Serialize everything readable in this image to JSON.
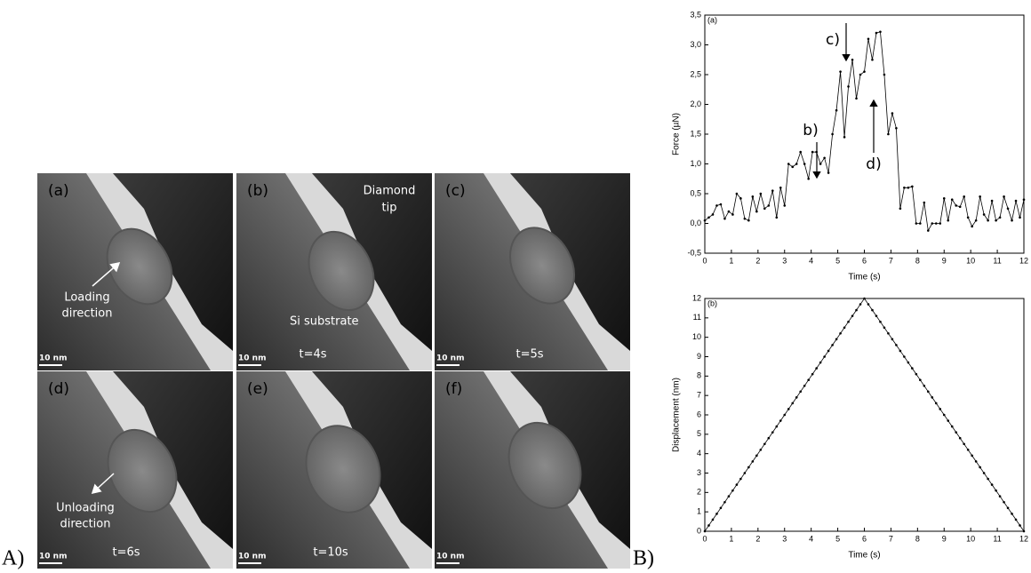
{
  "figure": {
    "panel_a_label": "A)",
    "panel_b_label": "B)",
    "images": [
      {
        "label": "(a)",
        "scale_bar": "10 nm",
        "texts": [
          "Loading",
          "direction"
        ]
      },
      {
        "label": "(b)",
        "scale_bar": "10 nm",
        "texts": [
          "Diamond",
          "tip",
          "Si substrate",
          "t=4s"
        ]
      },
      {
        "label": "(c)",
        "scale_bar": "10 nm",
        "texts": [
          "t=5s"
        ]
      },
      {
        "label": "(d)",
        "scale_bar": "10 nm",
        "texts": [
          "Unloading",
          "direction",
          "t=6s"
        ]
      },
      {
        "label": "(e)",
        "scale_bar": "10 nm",
        "texts": [
          "t=10s"
        ]
      },
      {
        "label": "(f)",
        "scale_bar": "10 nm",
        "texts": []
      }
    ]
  },
  "chart_data": [
    {
      "type": "line",
      "panel_label": "(a)",
      "x_label": "Time (s)",
      "y_label": "Force (µN)",
      "color": "#000000",
      "annotations": [
        "b)",
        "c)",
        "d)"
      ],
      "x": [
        0,
        0.15,
        0.3,
        0.45,
        0.6,
        0.75,
        0.9,
        1.05,
        1.2,
        1.35,
        1.5,
        1.65,
        1.8,
        1.95,
        2.1,
        2.25,
        2.4,
        2.55,
        2.7,
        2.85,
        3,
        3.15,
        3.3,
        3.45,
        3.6,
        3.75,
        3.9,
        4.05,
        4.2,
        4.35,
        4.5,
        4.65,
        4.8,
        4.95,
        5.1,
        5.25,
        5.4,
        5.55,
        5.7,
        5.85,
        6,
        6.15,
        6.3,
        6.45,
        6.6,
        6.75,
        6.9,
        7.05,
        7.2,
        7.35,
        7.5,
        7.65,
        7.8,
        7.95,
        8.1,
        8.25,
        8.4,
        8.55,
        8.7,
        8.85,
        9,
        9.15,
        9.3,
        9.45,
        9.6,
        9.75,
        9.9,
        10.05,
        10.2,
        10.35,
        10.5,
        10.65,
        10.8,
        10.95,
        11.1,
        11.25,
        11.4,
        11.55,
        11.7,
        11.85,
        12
      ],
      "values": [
        0.05,
        0.1,
        0.15,
        0.3,
        0.32,
        0.08,
        0.2,
        0.15,
        0.5,
        0.42,
        0.08,
        0.05,
        0.45,
        0.2,
        0.5,
        0.25,
        0.3,
        0.55,
        0.1,
        0.6,
        0.3,
        1.0,
        0.95,
        1.0,
        1.2,
        1.0,
        0.75,
        1.2,
        1.2,
        1.0,
        1.1,
        0.85,
        1.5,
        1.9,
        2.55,
        1.45,
        2.3,
        2.75,
        2.1,
        2.5,
        2.55,
        3.1,
        2.75,
        3.2,
        3.22,
        2.5,
        1.5,
        1.85,
        1.6,
        0.25,
        0.6,
        0.6,
        0.62,
        0,
        0,
        0.35,
        -0.12,
        0,
        0,
        0,
        0.42,
        0.05,
        0.4,
        0.3,
        0.28,
        0.45,
        0.1,
        -0.05,
        0.05,
        0.45,
        0.15,
        0.05,
        0.38,
        0.05,
        0.1,
        0.45,
        0.25,
        0.05,
        0.38,
        0.1,
        0.4
      ],
      "xlim": [
        0,
        12
      ],
      "xticks": [
        0,
        1,
        2,
        3,
        4,
        5,
        6,
        7,
        8,
        9,
        10,
        11,
        12
      ],
      "ylim": [
        -0.5,
        3.5
      ],
      "yticks": [
        {
          "value": -0.5,
          "label": "-0,5"
        },
        {
          "value": 0,
          "label": "0,0"
        },
        {
          "value": 0.5,
          "label": "0,5"
        },
        {
          "value": 1,
          "label": "1,0"
        },
        {
          "value": 1.5,
          "label": "1,5"
        },
        {
          "value": 2,
          "label": "2,0"
        },
        {
          "value": 2.5,
          "label": "2,5"
        },
        {
          "value": 3,
          "label": "3,0"
        },
        {
          "value": 3.5,
          "label": "3,5"
        }
      ]
    },
    {
      "type": "line",
      "panel_label": "(b)",
      "x_label": "Time (s)",
      "y_label": "Displacement (nm)",
      "color": "#000000",
      "annotations": [],
      "x": [
        0,
        0.15,
        0.3,
        0.45,
        0.6,
        0.75,
        0.9,
        1.05,
        1.2,
        1.35,
        1.5,
        1.65,
        1.8,
        1.95,
        2.1,
        2.25,
        2.4,
        2.55,
        2.7,
        2.85,
        3,
        3.15,
        3.3,
        3.45,
        3.6,
        3.75,
        3.9,
        4.05,
        4.2,
        4.35,
        4.5,
        4.65,
        4.8,
        4.95,
        5.1,
        5.25,
        5.4,
        5.55,
        5.7,
        5.85,
        6,
        6.15,
        6.3,
        6.45,
        6.6,
        6.75,
        6.9,
        7.05,
        7.2,
        7.35,
        7.5,
        7.65,
        7.8,
        7.95,
        8.1,
        8.25,
        8.4,
        8.55,
        8.7,
        8.85,
        9,
        9.15,
        9.3,
        9.45,
        9.6,
        9.75,
        9.9,
        10.05,
        10.2,
        10.35,
        10.5,
        10.65,
        10.8,
        10.95,
        11.1,
        11.25,
        11.4,
        11.55,
        11.7,
        11.85,
        12
      ],
      "values": [
        0,
        0.3,
        0.6,
        0.9,
        1.2,
        1.5,
        1.8,
        2.1,
        2.4,
        2.7,
        3,
        3.3,
        3.6,
        3.9,
        4.2,
        4.5,
        4.8,
        5.1,
        5.4,
        5.7,
        6,
        6.3,
        6.6,
        6.9,
        7.2,
        7.5,
        7.8,
        8.1,
        8.4,
        8.7,
        9,
        9.3,
        9.6,
        9.9,
        10.2,
        10.5,
        10.8,
        11.1,
        11.4,
        11.7,
        12,
        11.7,
        11.4,
        11.1,
        10.8,
        10.5,
        10.2,
        9.9,
        9.6,
        9.3,
        9,
        8.7,
        8.4,
        8.1,
        7.8,
        7.5,
        7.2,
        6.9,
        6.6,
        6.3,
        6,
        5.7,
        5.4,
        5.1,
        4.8,
        4.5,
        4.2,
        3.9,
        3.6,
        3.3,
        3,
        2.7,
        2.4,
        2.1,
        1.8,
        1.5,
        1.2,
        0.9,
        0.6,
        0.3,
        0
      ],
      "xlim": [
        0,
        12
      ],
      "xticks": [
        0,
        1,
        2,
        3,
        4,
        5,
        6,
        7,
        8,
        9,
        10,
        11,
        12
      ],
      "ylim": [
        0,
        12
      ],
      "yticks": [
        0,
        1,
        2,
        3,
        4,
        5,
        6,
        7,
        8,
        9,
        10,
        11,
        12
      ]
    }
  ]
}
